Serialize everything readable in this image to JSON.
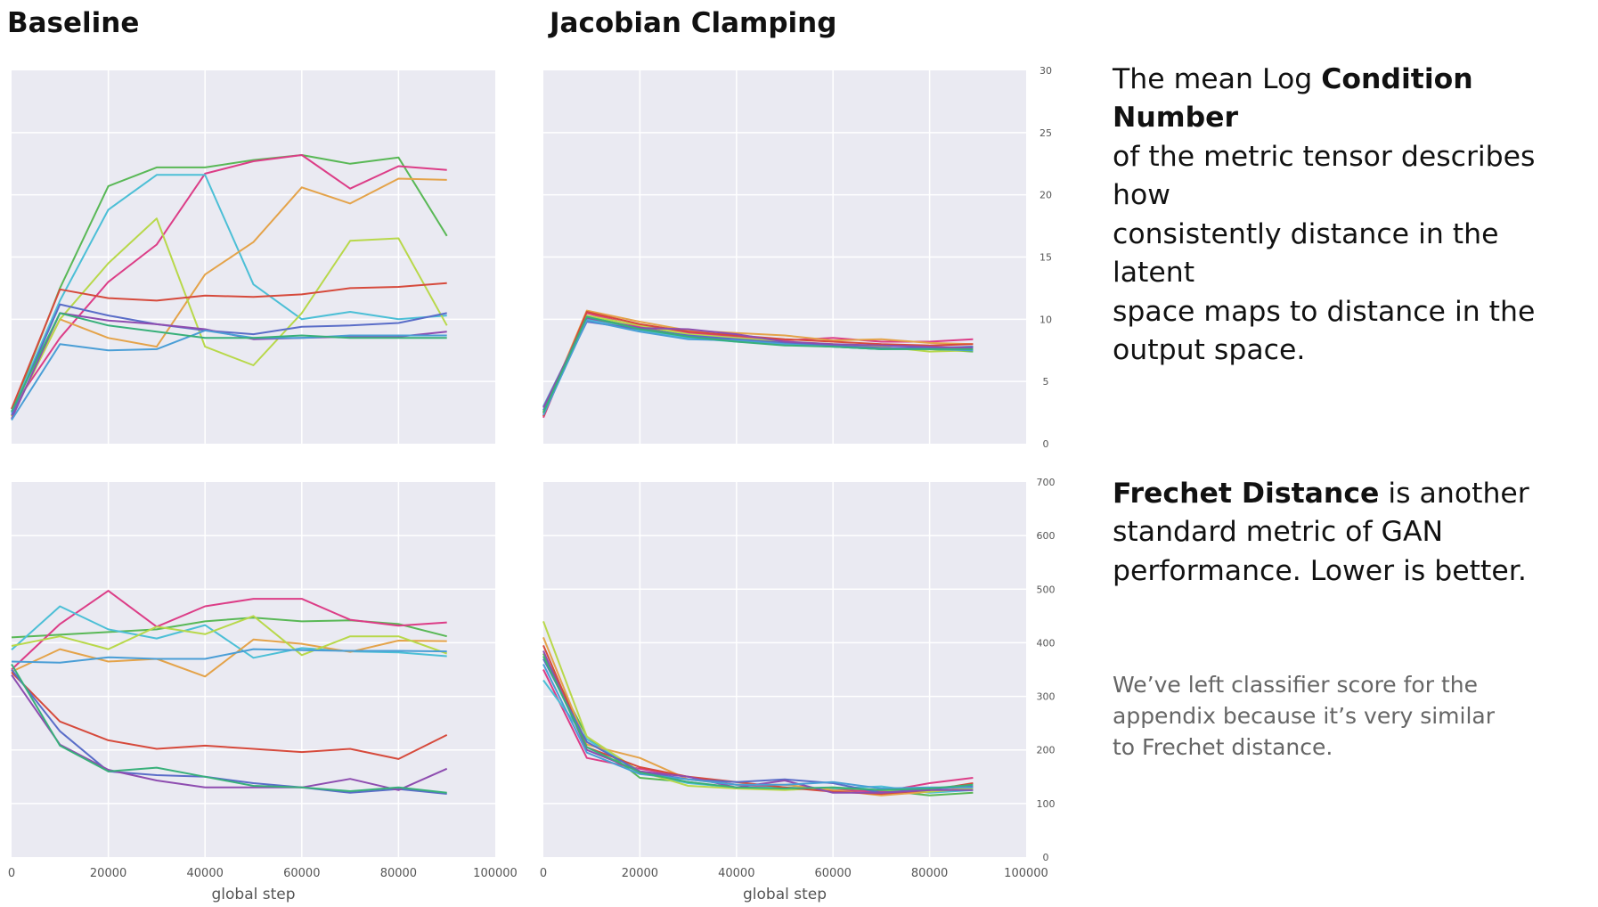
{
  "titles": {
    "left": "Baseline",
    "right": "Jacobian Clamping"
  },
  "description": {
    "top_prefix": "The mean Log ",
    "top_bold": "Condition Number",
    "top_lines": [
      "of the metric tensor describes  how",
      "consistently distance in the latent",
      "space maps to distance in the",
      "output space."
    ],
    "bottom_bold": "Frechet Distance",
    "bottom_suffix": " is another",
    "bottom_lines": [
      "standard metric of GAN",
      "performance. Lower is better."
    ],
    "note_lines": [
      "We’ve left classifier score for the",
      "appendix because it’s very similar",
      "to Frechet distance."
    ]
  },
  "colors": {
    "plot_bg": "#eaeaf2",
    "grid": "#ffffff",
    "series": [
      "#59b856",
      "#dc3d87",
      "#4cbfd6",
      "#e4a34a",
      "#b8d84a",
      "#d64a3c",
      "#5a6dc8",
      "#8e4db0",
      "#4a9ed6",
      "#38b07a"
    ]
  },
  "chart_data": [
    {
      "type": "line",
      "panel": "Baseline - condition number",
      "x": [
        0,
        10000,
        20000,
        30000,
        40000,
        50000,
        60000,
        70000,
        80000,
        90000
      ],
      "xlim": [
        0,
        100000
      ],
      "ylim": [
        0,
        30
      ],
      "yticks": [],
      "xticks": [],
      "xlabel": "",
      "ylabel": "",
      "series": [
        {
          "values": [
            2.5,
            12.5,
            20.7,
            22.2,
            22.2,
            22.8,
            23.2,
            22.5,
            23.0,
            16.7
          ]
        },
        {
          "values": [
            2.8,
            8.5,
            13.0,
            16.0,
            21.7,
            22.7,
            23.2,
            20.5,
            22.3,
            22.0
          ]
        },
        {
          "values": [
            2.5,
            11.5,
            18.8,
            21.6,
            21.6,
            12.8,
            10.0,
            10.6,
            10.0,
            10.3
          ]
        },
        {
          "values": [
            2.2,
            10.0,
            8.5,
            7.8,
            13.6,
            16.2,
            20.6,
            19.3,
            21.3,
            21.2
          ]
        },
        {
          "values": [
            2.2,
            10.0,
            14.5,
            18.1,
            7.8,
            6.3,
            10.5,
            16.3,
            16.5,
            9.5
          ]
        },
        {
          "values": [
            2.8,
            12.4,
            11.7,
            11.5,
            11.9,
            11.8,
            12.0,
            12.5,
            12.6,
            12.9
          ]
        },
        {
          "values": [
            2.3,
            11.2,
            10.3,
            9.6,
            9.1,
            8.8,
            9.4,
            9.5,
            9.7,
            10.5
          ]
        },
        {
          "values": [
            2.0,
            10.5,
            9.9,
            9.6,
            9.2,
            8.4,
            8.5,
            8.6,
            8.6,
            9.0
          ]
        },
        {
          "values": [
            1.9,
            8.0,
            7.5,
            7.6,
            9.1,
            8.5,
            8.5,
            8.7,
            8.7,
            8.7
          ]
        },
        {
          "values": [
            2.6,
            10.5,
            9.5,
            9.0,
            8.5,
            8.5,
            8.7,
            8.5,
            8.5,
            8.5
          ]
        }
      ]
    },
    {
      "type": "line",
      "panel": "Jacobian Clamping - condition number",
      "x": [
        0,
        9000,
        20000,
        30000,
        40000,
        50000,
        60000,
        70000,
        80000,
        89000
      ],
      "xlim": [
        0,
        100000
      ],
      "ylim": [
        0,
        30
      ],
      "yticks": [
        0,
        5,
        10,
        15,
        20,
        25,
        30
      ],
      "xticks": [],
      "xlabel": "",
      "ylabel": "",
      "series": [
        {
          "values": [
            2.5,
            10.2,
            9.3,
            8.7,
            8.3,
            8.0,
            7.9,
            7.7,
            7.6,
            7.4
          ]
        },
        {
          "values": [
            2.1,
            10.5,
            9.4,
            8.9,
            8.6,
            8.3,
            8.5,
            8.2,
            8.2,
            8.4
          ]
        },
        {
          "values": [
            3.0,
            10.0,
            9.1,
            8.5,
            8.2,
            8.0,
            7.8,
            7.6,
            7.7,
            7.8
          ]
        },
        {
          "values": [
            2.4,
            10.7,
            9.8,
            9.1,
            8.9,
            8.7,
            8.3,
            8.4,
            8.1,
            8.0
          ]
        },
        {
          "values": [
            2.6,
            10.3,
            9.5,
            8.8,
            8.5,
            8.2,
            8.0,
            7.8,
            7.4,
            7.5
          ]
        },
        {
          "values": [
            2.2,
            10.6,
            9.6,
            9.0,
            8.7,
            8.4,
            8.2,
            8.0,
            7.9,
            8.0
          ]
        },
        {
          "values": [
            2.7,
            9.8,
            9.2,
            8.7,
            8.4,
            8.1,
            7.9,
            7.7,
            7.7,
            7.8
          ]
        },
        {
          "values": [
            2.9,
            10.1,
            9.3,
            9.2,
            8.8,
            8.2,
            8.0,
            7.9,
            7.8,
            7.7
          ]
        },
        {
          "values": [
            2.3,
            9.9,
            9.0,
            8.4,
            8.3,
            8.0,
            7.8,
            7.6,
            7.6,
            7.5
          ]
        },
        {
          "values": [
            2.5,
            10.2,
            9.2,
            8.6,
            8.2,
            7.9,
            7.8,
            7.6,
            7.6,
            7.6
          ]
        }
      ]
    },
    {
      "type": "line",
      "panel": "Baseline - Frechet distance",
      "x": [
        0,
        10000,
        20000,
        30000,
        40000,
        50000,
        60000,
        70000,
        80000,
        90000
      ],
      "xlim": [
        0,
        100000
      ],
      "ylim": [
        0,
        700
      ],
      "yticks": [],
      "xticks": [
        "0",
        "20000",
        "40000",
        "60000",
        "80000",
        "100000"
      ],
      "xlabel": "global step",
      "ylabel": "",
      "series": [
        {
          "values": [
            410,
            415,
            420,
            425,
            440,
            447,
            440,
            442,
            435,
            412
          ]
        },
        {
          "values": [
            350,
            435,
            497,
            430,
            468,
            482,
            482,
            443,
            432,
            438
          ]
        },
        {
          "values": [
            387,
            468,
            425,
            408,
            433,
            372,
            390,
            384,
            382,
            375
          ]
        },
        {
          "values": [
            346,
            388,
            365,
            370,
            337,
            406,
            398,
            383,
            404,
            403
          ]
        },
        {
          "values": [
            394,
            412,
            388,
            430,
            416,
            450,
            377,
            412,
            412,
            380
          ]
        },
        {
          "values": [
            345,
            253,
            218,
            202,
            208,
            202,
            196,
            202,
            183,
            228
          ]
        },
        {
          "values": [
            350,
            235,
            160,
            153,
            150,
            138,
            130,
            120,
            127,
            118
          ]
        },
        {
          "values": [
            340,
            210,
            163,
            143,
            130,
            130,
            130,
            146,
            125,
            165
          ]
        },
        {
          "values": [
            365,
            363,
            373,
            370,
            370,
            388,
            386,
            385,
            385,
            384
          ]
        },
        {
          "values": [
            360,
            208,
            160,
            167,
            150,
            133,
            130,
            123,
            130,
            120
          ]
        }
      ]
    },
    {
      "type": "line",
      "panel": "Jacobian Clamping - Frechet distance",
      "x": [
        0,
        9000,
        20000,
        30000,
        40000,
        50000,
        60000,
        70000,
        80000,
        89000
      ],
      "xlim": [
        0,
        100000
      ],
      "ylim": [
        0,
        700
      ],
      "yticks": [
        0,
        100,
        200,
        300,
        400,
        500,
        600,
        700
      ],
      "xticks": [
        "0",
        "20000",
        "40000",
        "60000",
        "80000",
        "100000"
      ],
      "xlabel": "global step",
      "ylabel": "",
      "series": [
        {
          "values": [
            380,
            225,
            148,
            140,
            128,
            127,
            128,
            125,
            115,
            120
          ]
        },
        {
          "values": [
            350,
            185,
            165,
            150,
            135,
            130,
            125,
            122,
            138,
            148
          ]
        },
        {
          "values": [
            330,
            220,
            158,
            138,
            130,
            130,
            128,
            132,
            120,
            125
          ]
        },
        {
          "values": [
            410,
            210,
            185,
            145,
            135,
            135,
            125,
            115,
            122,
            130
          ]
        },
        {
          "values": [
            440,
            225,
            160,
            133,
            128,
            125,
            130,
            125,
            122,
            128
          ]
        },
        {
          "values": [
            395,
            205,
            168,
            150,
            140,
            130,
            122,
            118,
            125,
            138
          ]
        },
        {
          "values": [
            370,
            215,
            160,
            145,
            140,
            145,
            138,
            120,
            127,
            132
          ]
        },
        {
          "values": [
            385,
            200,
            160,
            150,
            130,
            143,
            120,
            120,
            125,
            125
          ]
        },
        {
          "values": [
            360,
            195,
            155,
            145,
            135,
            135,
            140,
            128,
            130,
            130
          ]
        },
        {
          "values": [
            375,
            205,
            158,
            140,
            130,
            128,
            130,
            125,
            128,
            135
          ]
        }
      ]
    }
  ]
}
